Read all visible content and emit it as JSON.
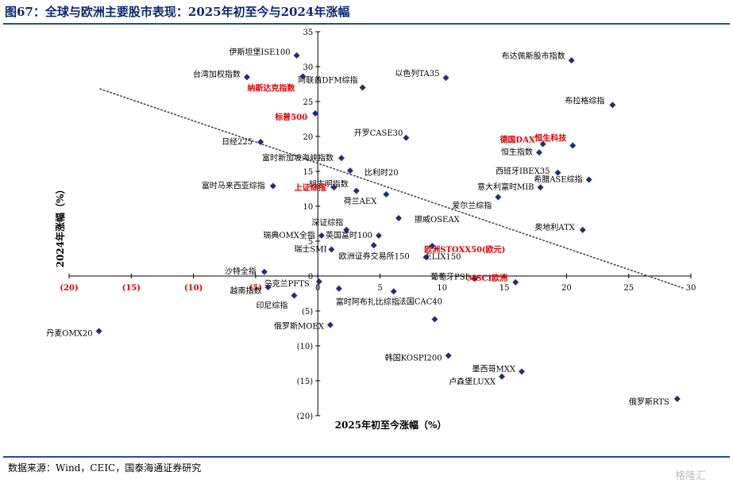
{
  "figure": {
    "title": "图67：全球与欧洲主要股市表现：2025年初至今与2024年涨幅",
    "source": "数据来源：Wind，CEIC，国泰海通证券研究",
    "watermark": "格隆汇"
  },
  "colors": {
    "title": "#0a2a70",
    "rule": "#1a4fa0",
    "point": "#1f2f7a",
    "highlight_label": "#e00000",
    "negative_x_tick": "#e00000",
    "trend": "#444444"
  },
  "chart_data": {
    "type": "scatter",
    "title": "",
    "xlabel": "2025年初至今涨幅（%）",
    "ylabel": "2024年涨幅（%）",
    "xlim": [
      -20,
      30
    ],
    "ylim": [
      -20,
      35
    ],
    "x_ticks": [
      "(20)",
      "(15)",
      "(10)",
      "(5)",
      "0",
      "5",
      "10",
      "15",
      "20",
      "25",
      "30"
    ],
    "y_ticks": [
      "35",
      "30",
      "25",
      "20",
      "15",
      "10",
      "5",
      "0",
      "(5)",
      "(10)",
      "(15)",
      "(20)"
    ],
    "trendline": {
      "style": "dotted",
      "from": [
        -17.5,
        26.8
      ],
      "to": [
        29.5,
        -1.8
      ]
    },
    "points": [
      {
        "name": "伊斯坦堡ISE100",
        "x": -1.7,
        "y": 31.6,
        "highlight": false
      },
      {
        "name": "台湾加权指数",
        "x": -5.7,
        "y": 28.5,
        "highlight": false
      },
      {
        "name": "阿联酋DFM综指",
        "x": 3.6,
        "y": 27.0,
        "highlight": false
      },
      {
        "name": "纳斯达克指数",
        "x": -1.2,
        "y": 28.6,
        "highlight": true
      },
      {
        "name": "以色列TA35",
        "x": 10.3,
        "y": 28.4,
        "highlight": false
      },
      {
        "name": "布达佩斯股市指数",
        "x": 20.4,
        "y": 30.9,
        "highlight": false
      },
      {
        "name": "布拉格综指",
        "x": 23.7,
        "y": 24.5,
        "highlight": false
      },
      {
        "name": "标普500",
        "x": -0.2,
        "y": 23.3,
        "highlight": true
      },
      {
        "name": "开罗CASE30",
        "x": 7.1,
        "y": 19.8,
        "highlight": false
      },
      {
        "name": "日经225",
        "x": -4.6,
        "y": 19.2,
        "highlight": false
      },
      {
        "name": "德国DAX",
        "x": 18.1,
        "y": 18.9,
        "highlight": true
      },
      {
        "name": "恒生科技",
        "x": 20.5,
        "y": 18.7,
        "highlight": true
      },
      {
        "name": "恒生指数",
        "x": 17.8,
        "y": 17.7,
        "highlight": false
      },
      {
        "name": "富时新加坡海峡指数",
        "x": 1.9,
        "y": 16.9,
        "highlight": false
      },
      {
        "name": "比利时20",
        "x": 2.6,
        "y": 15.1,
        "highlight": false
      },
      {
        "name": "西班牙IBEX35",
        "x": 19.3,
        "y": 14.8,
        "highlight": false
      },
      {
        "name": "胡志明指数",
        "x": 3.1,
        "y": 12.2,
        "highlight": false
      },
      {
        "name": "希腊ASE综指",
        "x": 21.8,
        "y": 13.8,
        "highlight": false
      },
      {
        "name": "富时马来西亚综指",
        "x": -3.6,
        "y": 12.9,
        "highlight": false
      },
      {
        "name": "上证综指",
        "x": 1.3,
        "y": 12.7,
        "highlight": true
      },
      {
        "name": "意大利富时MIB",
        "x": 17.9,
        "y": 12.7,
        "highlight": false
      },
      {
        "name": "荷兰AEX",
        "x": 5.5,
        "y": 11.7,
        "highlight": false
      },
      {
        "name": "爱尔兰综指",
        "x": 14.5,
        "y": 11.3,
        "highlight": false
      },
      {
        "name": "深证综指",
        "x": 2.3,
        "y": 6.6,
        "highlight": false
      },
      {
        "name": "挪威OSEAX",
        "x": 6.5,
        "y": 8.3,
        "highlight": false
      },
      {
        "name": "奥地利ATX",
        "x": 21.3,
        "y": 6.6,
        "highlight": false
      },
      {
        "name": "英国富时100",
        "x": 4.9,
        "y": 5.8,
        "highlight": false
      },
      {
        "name": "瑞典OMX全指",
        "x": 0.3,
        "y": 5.8,
        "highlight": false
      },
      {
        "name": "瑞士SMI",
        "x": 1.1,
        "y": 3.8,
        "highlight": false
      },
      {
        "name": "欧洲证券交易所150",
        "x": 4.5,
        "y": 4.4,
        "highlight": false
      },
      {
        "name": "欧洲STOXX50(欧元)",
        "x": 9.2,
        "y": 4.3,
        "highlight": true
      },
      {
        "name": "ELIX150",
        "x": 8.7,
        "y": 2.7,
        "highlight": false
      },
      {
        "name": "沙特全指",
        "x": -4.3,
        "y": 0.6,
        "highlight": false
      },
      {
        "name": "葡萄牙PSI",
        "x": 12.6,
        "y": -0.4,
        "highlight": false
      },
      {
        "name": "MSCI欧洲",
        "x": 15.9,
        "y": -0.9,
        "highlight": true
      },
      {
        "name": "乌克兰PFTS",
        "x": 0.1,
        "y": -0.8,
        "highlight": false
      },
      {
        "name": "越南指数",
        "x": -4.0,
        "y": -1.6,
        "highlight": false
      },
      {
        "name": "富时阿布扎比综指",
        "x": 1.7,
        "y": -1.8,
        "highlight": false
      },
      {
        "name": "法国CAC40",
        "x": 6.1,
        "y": -2.2,
        "highlight": false
      },
      {
        "name": "印尼综指",
        "x": -1.9,
        "y": -2.8,
        "highlight": false
      },
      {
        "name": "俄罗斯MOEX",
        "x": 1.0,
        "y": -7.0,
        "highlight": false
      },
      {
        "name": "丹麦OMX20",
        "x": -17.6,
        "y": -7.9,
        "highlight": false
      },
      {
        "name": "",
        "x": 9.4,
        "y": -6.2,
        "highlight": false
      },
      {
        "name": "韩国KOSPI200",
        "x": 10.5,
        "y": -11.4,
        "highlight": false
      },
      {
        "name": "墨西哥MXX",
        "x": 16.4,
        "y": -13.7,
        "highlight": false
      },
      {
        "name": "卢森堡LUXX",
        "x": 14.8,
        "y": -14.4,
        "highlight": false
      },
      {
        "name": "俄罗斯RTS",
        "x": 28.9,
        "y": -17.6,
        "highlight": false
      }
    ]
  }
}
